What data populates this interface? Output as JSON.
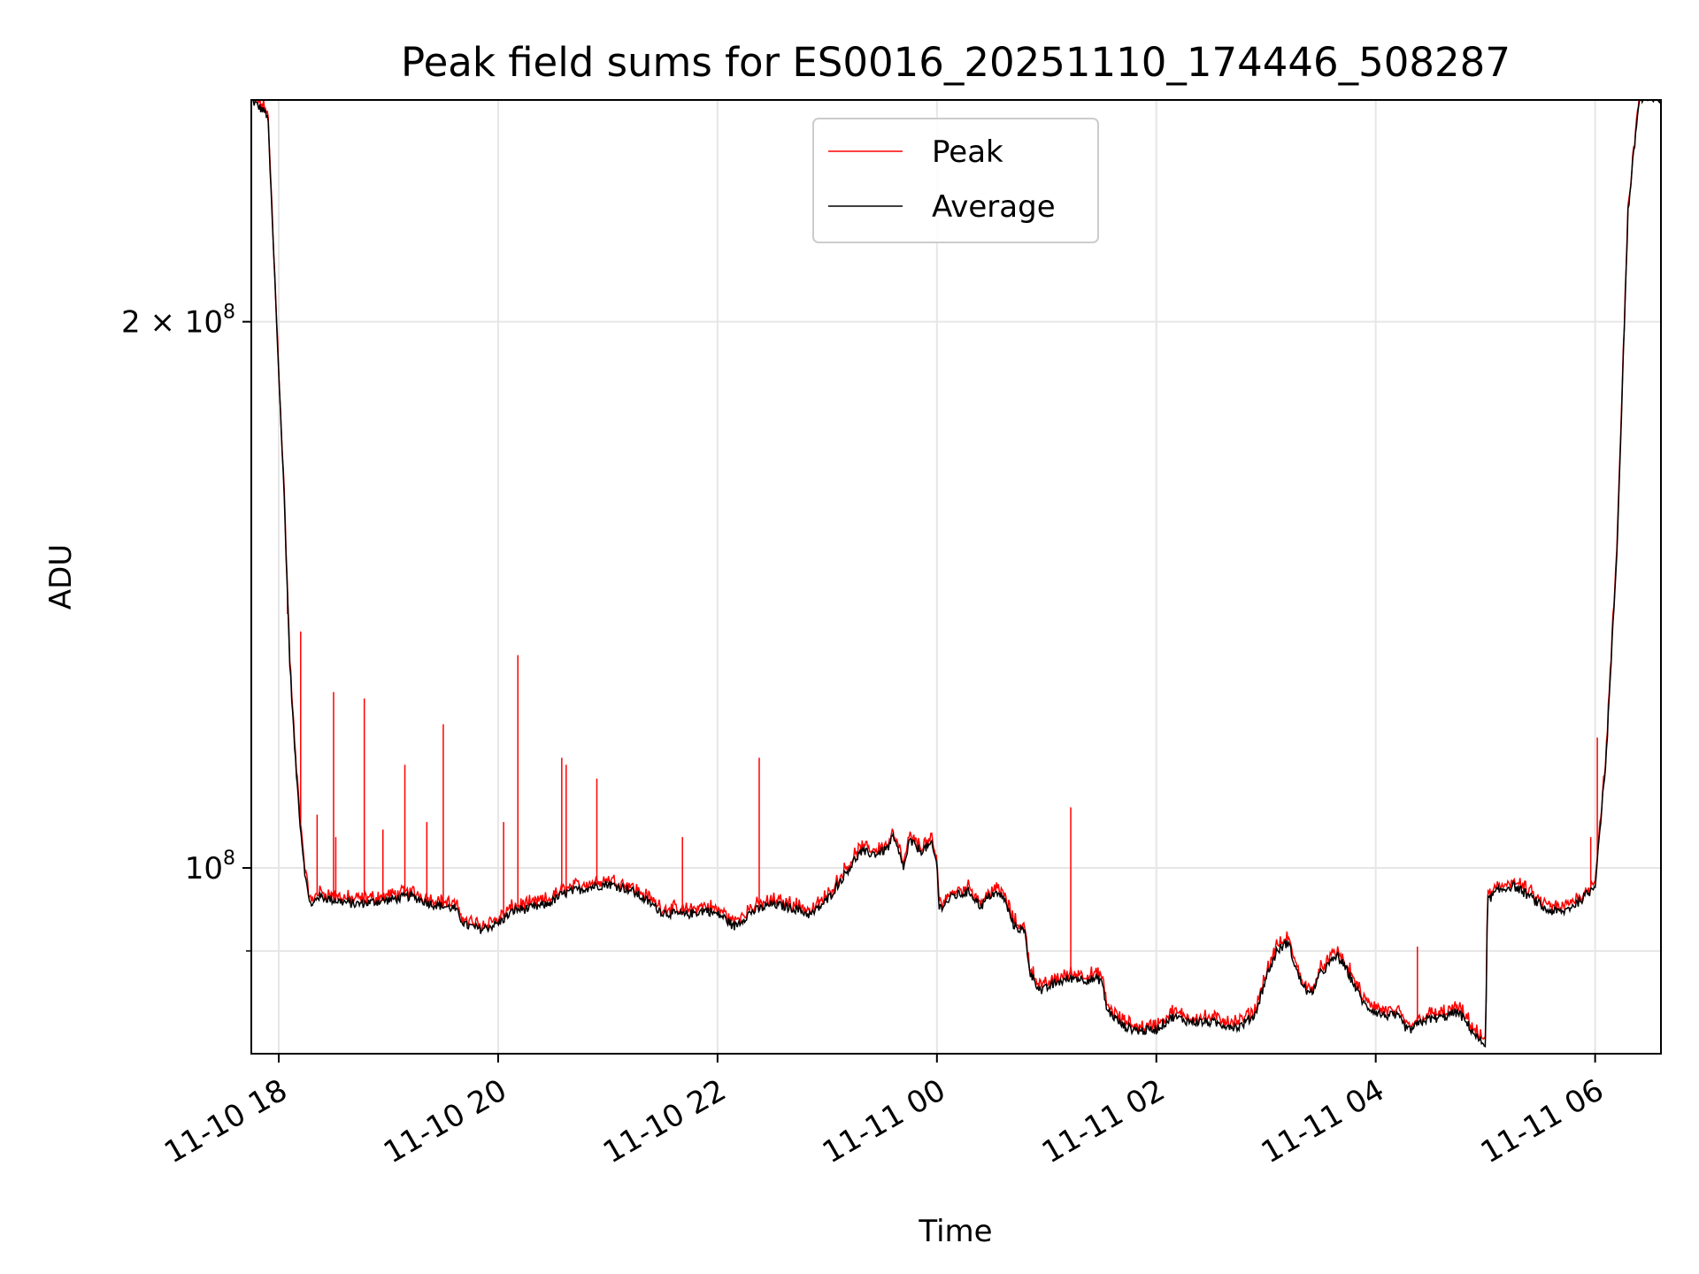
{
  "chart_data": {
    "type": "line",
    "title": "Peak field sums for ES0016_20251110_174446_508287",
    "xlabel": "Time",
    "ylabel": "ADU",
    "yscale": "log",
    "xlim_hours": [
      17.75,
      30.6
    ],
    "ylim": [
      79000000,
      265000000
    ],
    "grid": true,
    "legend_position": "top-center",
    "x_ticks": [
      {
        "hours": 18,
        "label": "11-10 18"
      },
      {
        "hours": 20,
        "label": "11-10 20"
      },
      {
        "hours": 22,
        "label": "11-10 22"
      },
      {
        "hours": 24,
        "label": "11-11 00"
      },
      {
        "hours": 26,
        "label": "11-11 02"
      },
      {
        "hours": 28,
        "label": "11-11 04"
      },
      {
        "hours": 30,
        "label": "11-11 06"
      }
    ],
    "y_ticks": [
      {
        "value": 100000000,
        "base": "10",
        "exp": "8",
        "mult": ""
      },
      {
        "value": 200000000,
        "base": "10",
        "exp": "8",
        "mult": "2 × "
      }
    ],
    "y_minor_ticks": [
      90000000
    ],
    "series": [
      {
        "name": "Peak",
        "color": "#ff0000",
        "spikes": [
          {
            "x": 18.08,
            "y": 138000000
          },
          {
            "x": 18.2,
            "y": 135000000
          },
          {
            "x": 18.35,
            "y": 107000000
          },
          {
            "x": 18.5,
            "y": 125000000
          },
          {
            "x": 18.52,
            "y": 104000000
          },
          {
            "x": 18.78,
            "y": 124000000
          },
          {
            "x": 18.95,
            "y": 105000000
          },
          {
            "x": 19.15,
            "y": 114000000
          },
          {
            "x": 19.35,
            "y": 106000000
          },
          {
            "x": 19.5,
            "y": 120000000
          },
          {
            "x": 20.05,
            "y": 106000000
          },
          {
            "x": 20.18,
            "y": 131000000
          },
          {
            "x": 20.58,
            "y": 115000000
          },
          {
            "x": 20.62,
            "y": 114000000
          },
          {
            "x": 20.9,
            "y": 112000000
          },
          {
            "x": 21.68,
            "y": 104000000
          },
          {
            "x": 22.38,
            "y": 115000000
          },
          {
            "x": 25.22,
            "y": 108000000
          },
          {
            "x": 28.38,
            "y": 90500000
          },
          {
            "x": 29.96,
            "y": 104000000
          },
          {
            "x": 30.02,
            "y": 118000000
          }
        ]
      },
      {
        "name": "Average",
        "color": "#000000",
        "points": [
          [
            17.75,
            265000000
          ],
          [
            17.9,
            260000000
          ],
          [
            17.98,
            200000000
          ],
          [
            18.05,
            160000000
          ],
          [
            18.1,
            130000000
          ],
          [
            18.15,
            115000000
          ],
          [
            18.2,
            105000000
          ],
          [
            18.25,
            98000000
          ],
          [
            18.3,
            95000000
          ],
          [
            18.35,
            96500000
          ],
          [
            18.5,
            96000000
          ],
          [
            18.7,
            95500000
          ],
          [
            19.0,
            96000000
          ],
          [
            19.2,
            96500000
          ],
          [
            19.4,
            95500000
          ],
          [
            19.6,
            95000000
          ],
          [
            19.7,
            93000000
          ],
          [
            19.85,
            92500000
          ],
          [
            20.0,
            93200000
          ],
          [
            20.15,
            94800000
          ],
          [
            20.3,
            95000000
          ],
          [
            20.45,
            95500000
          ],
          [
            20.6,
            96800000
          ],
          [
            20.8,
            97500000
          ],
          [
            21.0,
            98000000
          ],
          [
            21.2,
            97300000
          ],
          [
            21.4,
            95500000
          ],
          [
            21.5,
            94500000
          ],
          [
            21.7,
            94200000
          ],
          [
            21.9,
            94800000
          ],
          [
            22.05,
            94000000
          ],
          [
            22.15,
            92800000
          ],
          [
            22.3,
            94500000
          ],
          [
            22.5,
            95500000
          ],
          [
            22.7,
            95000000
          ],
          [
            22.85,
            94200000
          ],
          [
            23.0,
            96000000
          ],
          [
            23.15,
            99000000
          ],
          [
            23.3,
            102000000
          ],
          [
            23.45,
            101800000
          ],
          [
            23.55,
            102500000
          ],
          [
            23.6,
            104000000
          ],
          [
            23.7,
            100000000
          ],
          [
            23.75,
            103500000
          ],
          [
            23.85,
            102200000
          ],
          [
            23.95,
            103000000
          ],
          [
            24.0,
            100500000
          ],
          [
            24.02,
            95000000
          ],
          [
            24.15,
            96500000
          ],
          [
            24.3,
            97000000
          ],
          [
            24.4,
            95200000
          ],
          [
            24.5,
            96800000
          ],
          [
            24.6,
            96500000
          ],
          [
            24.7,
            93000000
          ],
          [
            24.8,
            92200000
          ],
          [
            24.85,
            87500000
          ],
          [
            24.95,
            85500000
          ],
          [
            25.1,
            86500000
          ],
          [
            25.25,
            87000000
          ],
          [
            25.35,
            86800000
          ],
          [
            25.5,
            86800000
          ],
          [
            25.55,
            83500000
          ],
          [
            25.7,
            81800000
          ],
          [
            25.85,
            81300000
          ],
          [
            26.0,
            81500000
          ],
          [
            26.15,
            82800000
          ],
          [
            26.3,
            82300000
          ],
          [
            26.5,
            82200000
          ],
          [
            26.75,
            81700000
          ],
          [
            26.9,
            83000000
          ],
          [
            27.0,
            87000000
          ],
          [
            27.1,
            90000000
          ],
          [
            27.2,
            91000000
          ],
          [
            27.3,
            87000000
          ],
          [
            27.4,
            85000000
          ],
          [
            27.5,
            87500000
          ],
          [
            27.65,
            89500000
          ],
          [
            27.75,
            87500000
          ],
          [
            27.9,
            84000000
          ],
          [
            28.05,
            83000000
          ],
          [
            28.2,
            82800000
          ],
          [
            28.3,
            81300000
          ],
          [
            28.45,
            82500000
          ],
          [
            28.6,
            82700000
          ],
          [
            28.75,
            83300000
          ],
          [
            28.85,
            81800000
          ],
          [
            28.95,
            80200000
          ],
          [
            29.0,
            80000000
          ],
          [
            29.02,
            96000000
          ],
          [
            29.1,
            97000000
          ],
          [
            29.25,
            97800000
          ],
          [
            29.4,
            96500000
          ],
          [
            29.55,
            94800000
          ],
          [
            29.7,
            94500000
          ],
          [
            29.85,
            95800000
          ],
          [
            29.95,
            97000000
          ],
          [
            30.0,
            98000000
          ],
          [
            30.1,
            115000000
          ],
          [
            30.2,
            150000000
          ],
          [
            30.3,
            230000000
          ],
          [
            30.4,
            265000000
          ],
          [
            30.6,
            265000000
          ]
        ]
      }
    ]
  }
}
